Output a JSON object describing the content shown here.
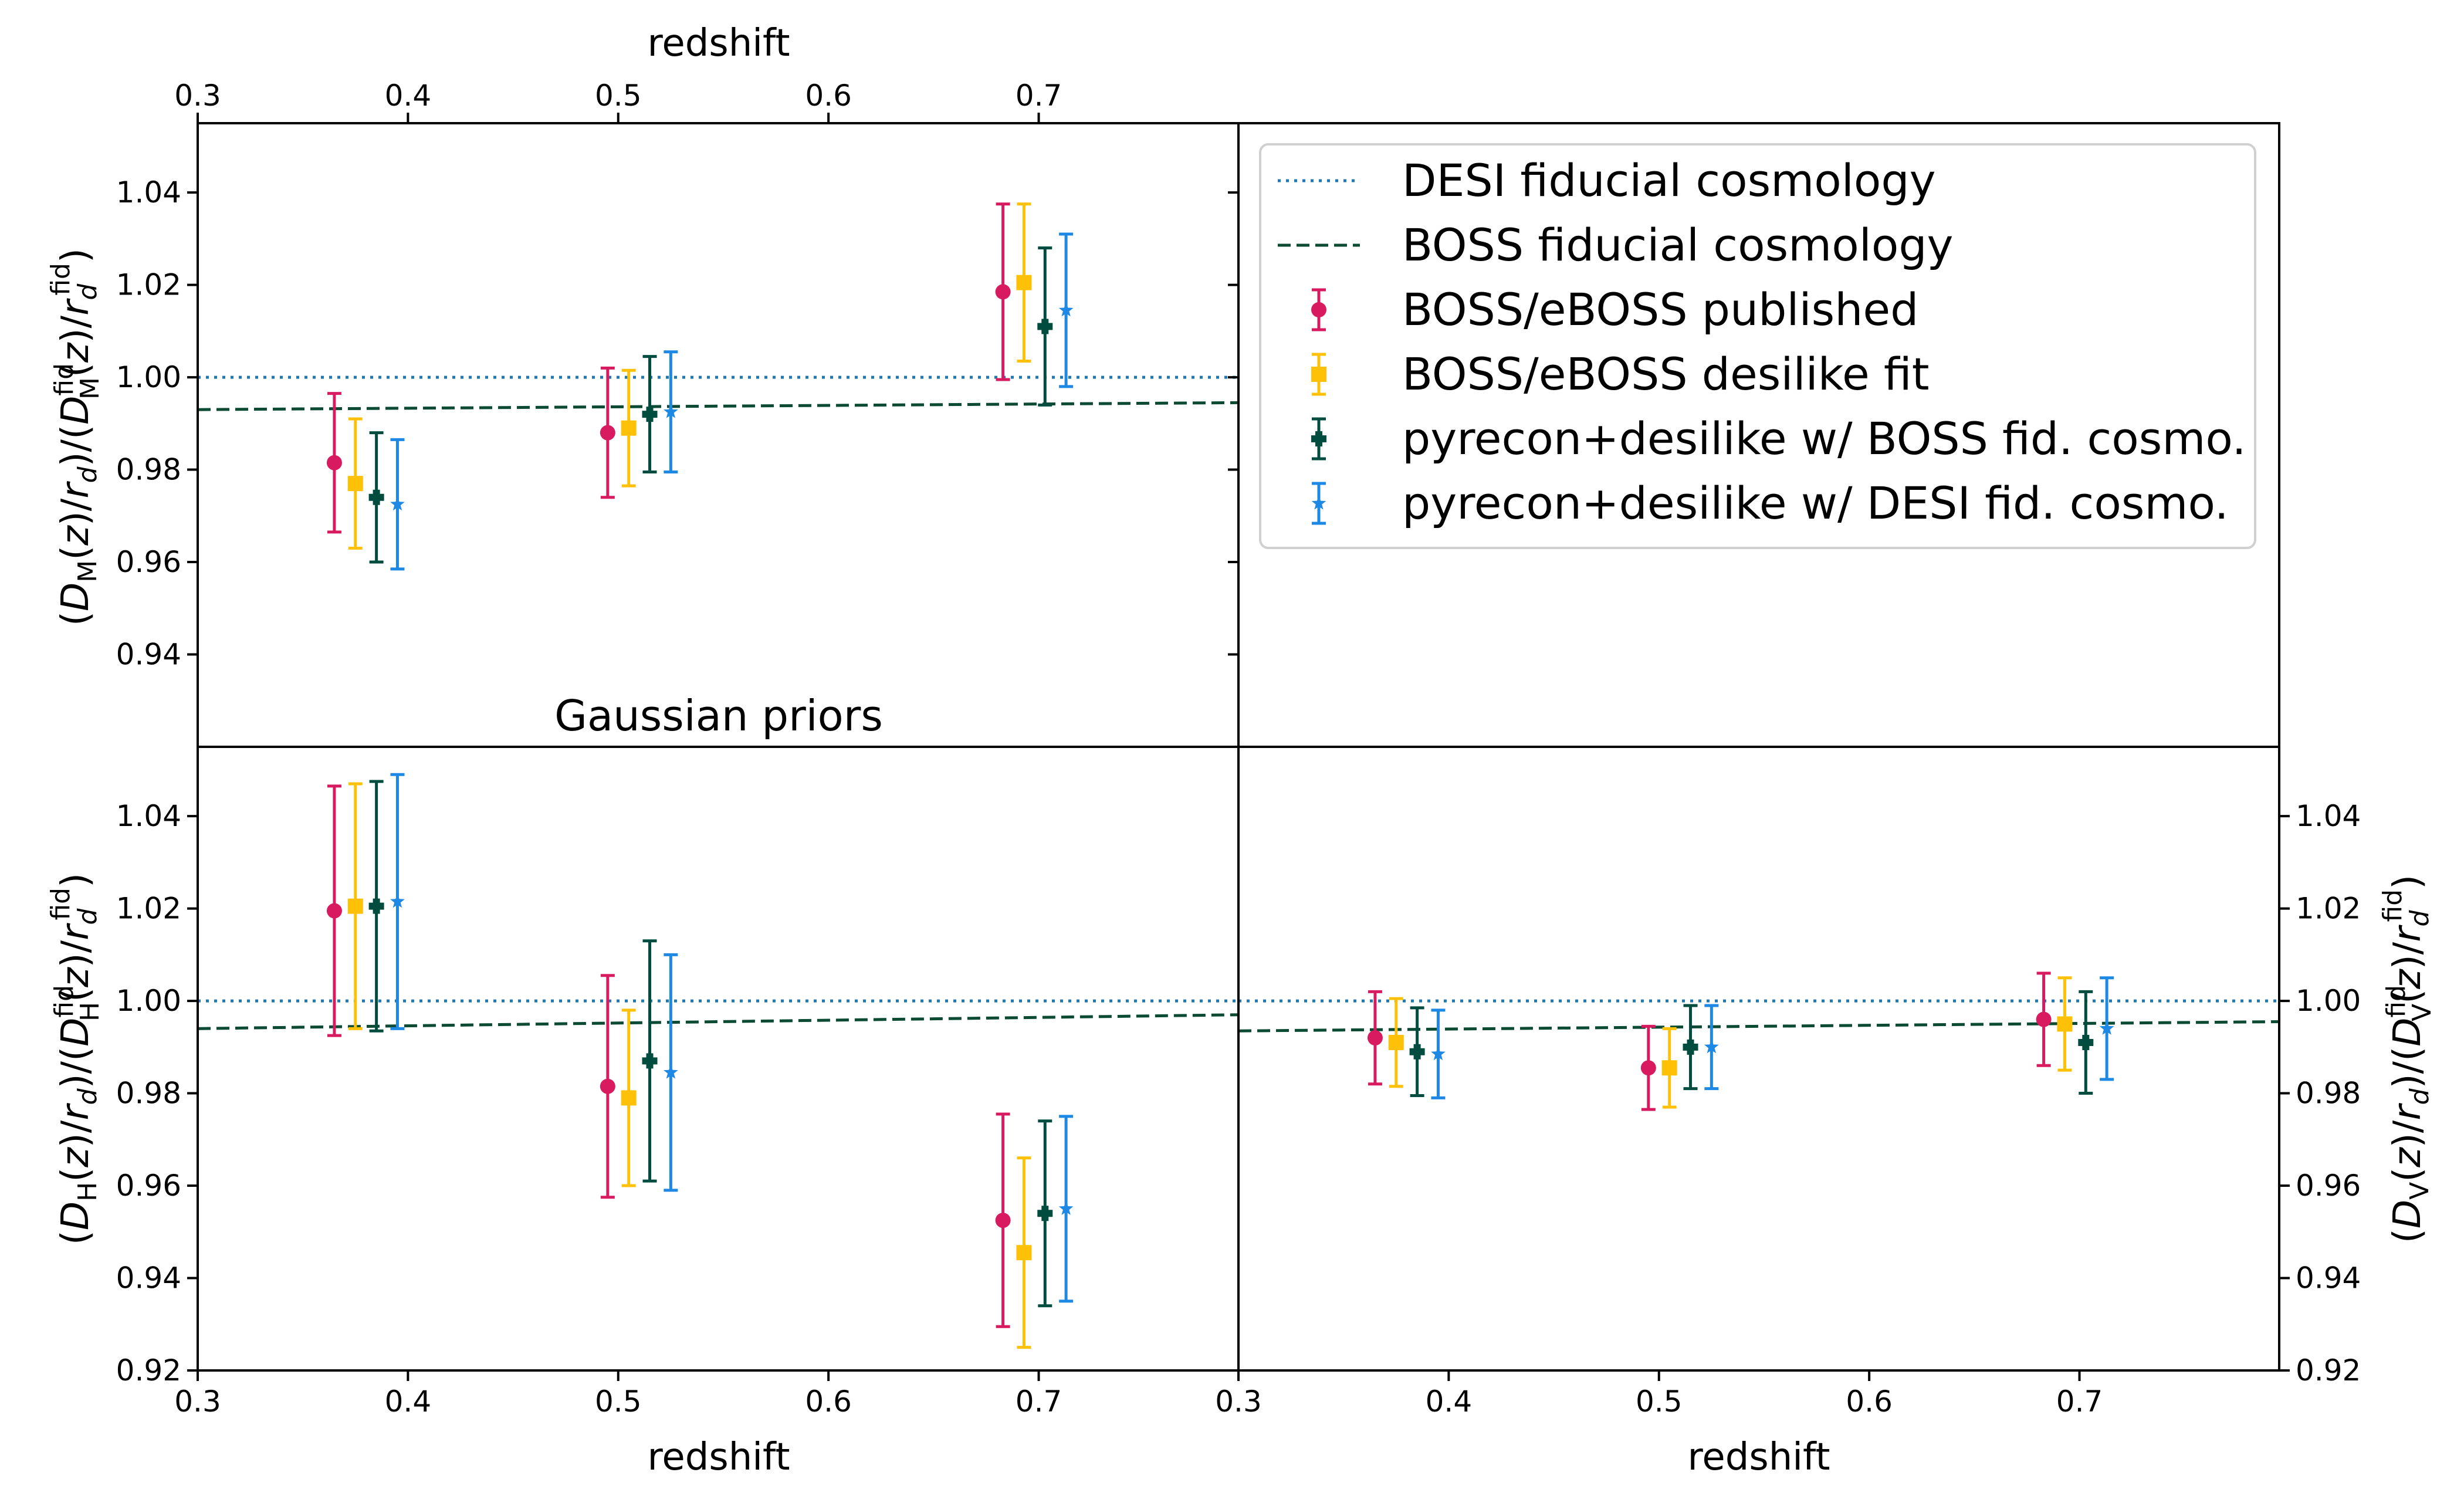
{
  "figure": {
    "top_xlabel": "redshift",
    "bottom_left_xlabel": "redshift",
    "bottom_right_xlabel": "redshift",
    "annotation": "Gaussian priors",
    "ylabel_top_left": "(D_M(z)/r_d)/(D_M^fid(z)/r_d^fid)",
    "ylabel_bottom_left": "(D_H(z)/r_d)/(D_H^fid(z)/r_d^fid)",
    "ylabel_bottom_right": "(D_V(z)/r_d)/(D_V^fid(z)/r_d^fid)",
    "x_ticks": [
      "0.3",
      "0.4",
      "0.5",
      "0.6",
      "0.7"
    ],
    "y_ticks": [
      "0.92",
      "0.94",
      "0.96",
      "0.98",
      "1.00",
      "1.02",
      "1.04"
    ],
    "y_ticks_top_left": [
      "0.94",
      "0.96",
      "0.98",
      "1.00",
      "1.02",
      "1.04"
    ]
  },
  "legend": {
    "placement": "upper-right panel",
    "items": [
      {
        "label": "DESI fiducial cosmology",
        "kind": "line",
        "style": "dotted",
        "color": "#1f77b4"
      },
      {
        "label": "BOSS fiducial cosmology",
        "kind": "line",
        "style": "dashed",
        "color": "#0b4a33"
      },
      {
        "label": "BOSS/eBOSS published",
        "kind": "marker",
        "marker": "circle",
        "color": "#d81b60"
      },
      {
        "label": "BOSS/eBOSS desilike fit",
        "kind": "marker",
        "marker": "square",
        "color": "#ffc107"
      },
      {
        "label": "pyrecon+desilike w/ BOSS fid. cosmo.",
        "kind": "marker",
        "marker": "plus",
        "color": "#004d40"
      },
      {
        "label": "pyrecon+desilike w/ DESI fid. cosmo.",
        "kind": "marker",
        "marker": "star",
        "color": "#1e88e5"
      }
    ]
  },
  "chart_data": [
    {
      "type": "scatter",
      "panel": "DM",
      "xlim": [
        0.3,
        0.795
      ],
      "ylim": [
        0.92,
        1.055
      ],
      "ylabel": "(D_M(z)/r_d)/(D_M^fid(z)/r_d^fid)",
      "reference_lines": [
        {
          "name": "DESI fiducial cosmology",
          "x": [
            0.3,
            0.795
          ],
          "y": [
            1.0,
            1.0
          ]
        },
        {
          "name": "BOSS fiducial cosmology",
          "x": [
            0.3,
            0.795
          ],
          "y": [
            0.993,
            0.9945
          ]
        }
      ],
      "series": [
        {
          "name": "BOSS/eBOSS published",
          "x": [
            0.365,
            0.495,
            0.683
          ],
          "y": [
            0.9815,
            0.988,
            1.0185
          ],
          "yerr": [
            0.015,
            0.014,
            0.019
          ]
        },
        {
          "name": "BOSS/eBOSS desilike fit",
          "x": [
            0.375,
            0.505,
            0.693
          ],
          "y": [
            0.977,
            0.989,
            1.0205
          ],
          "yerr": [
            0.014,
            0.0125,
            0.017
          ]
        },
        {
          "name": "pyrecon+desilike w/ BOSS fid. cosmo.",
          "x": [
            0.385,
            0.515,
            0.703
          ],
          "y": [
            0.974,
            0.992,
            1.011
          ],
          "yerr": [
            0.014,
            0.0125,
            0.017
          ]
        },
        {
          "name": "pyrecon+desilike w/ DESI fid. cosmo.",
          "x": [
            0.395,
            0.525,
            0.713
          ],
          "y": [
            0.9725,
            0.9925,
            1.0145
          ],
          "yerr": [
            0.014,
            0.013,
            0.0165
          ]
        }
      ]
    },
    {
      "type": "scatter",
      "panel": "DH",
      "xlim": [
        0.3,
        0.795
      ],
      "ylim": [
        0.92,
        1.055
      ],
      "xlabel": "redshift",
      "ylabel": "(D_H(z)/r_d)/(D_H^fid(z)/r_d^fid)",
      "reference_lines": [
        {
          "name": "DESI fiducial cosmology",
          "x": [
            0.3,
            0.795
          ],
          "y": [
            1.0,
            1.0
          ]
        },
        {
          "name": "BOSS fiducial cosmology",
          "x": [
            0.3,
            0.795
          ],
          "y": [
            0.994,
            0.997
          ]
        }
      ],
      "series": [
        {
          "name": "BOSS/eBOSS published",
          "x": [
            0.365,
            0.495,
            0.683
          ],
          "y": [
            1.0195,
            0.9815,
            0.9525
          ],
          "yerr": [
            0.027,
            0.024,
            0.023
          ]
        },
        {
          "name": "BOSS/eBOSS desilike fit",
          "x": [
            0.375,
            0.505,
            0.693
          ],
          "y": [
            1.0205,
            0.979,
            0.9455
          ],
          "yerr": [
            0.0265,
            0.019,
            0.0205
          ]
        },
        {
          "name": "pyrecon+desilike w/ BOSS fid. cosmo.",
          "x": [
            0.385,
            0.515,
            0.703
          ],
          "y": [
            1.0205,
            0.987,
            0.954
          ],
          "yerr": [
            0.027,
            0.026,
            0.02
          ]
        },
        {
          "name": "pyrecon+desilike w/ DESI fid. cosmo.",
          "x": [
            0.395,
            0.525,
            0.713
          ],
          "y": [
            1.0215,
            0.9845,
            0.955
          ],
          "yerr": [
            0.0275,
            0.0255,
            0.02
          ]
        }
      ]
    },
    {
      "type": "scatter",
      "panel": "DV",
      "xlim": [
        0.3,
        0.795
      ],
      "ylim": [
        0.92,
        1.055
      ],
      "xlabel": "redshift",
      "ylabel": "(D_V(z)/r_d)/(D_V^fid(z)/r_d^fid)",
      "reference_lines": [
        {
          "name": "DESI fiducial cosmology",
          "x": [
            0.3,
            0.795
          ],
          "y": [
            1.0,
            1.0
          ]
        },
        {
          "name": "BOSS fiducial cosmology",
          "x": [
            0.3,
            0.795
          ],
          "y": [
            0.9935,
            0.9955
          ]
        }
      ],
      "series": [
        {
          "name": "BOSS/eBOSS published",
          "x": [
            0.365,
            0.495,
            0.683
          ],
          "y": [
            0.992,
            0.9855,
            0.996
          ],
          "yerr": [
            0.01,
            0.009,
            0.01
          ]
        },
        {
          "name": "BOSS/eBOSS desilike fit",
          "x": [
            0.375,
            0.505,
            0.693
          ],
          "y": [
            0.991,
            0.9855,
            0.995
          ],
          "yerr": [
            0.0095,
            0.0085,
            0.01
          ]
        },
        {
          "name": "pyrecon+desilike w/ BOSS fid. cosmo.",
          "x": [
            0.385,
            0.515,
            0.703
          ],
          "y": [
            0.989,
            0.99,
            0.991
          ],
          "yerr": [
            0.0095,
            0.009,
            0.011
          ]
        },
        {
          "name": "pyrecon+desilike w/ DESI fid. cosmo.",
          "x": [
            0.395,
            0.525,
            0.713
          ],
          "y": [
            0.9885,
            0.99,
            0.994
          ],
          "yerr": [
            0.0095,
            0.009,
            0.011
          ]
        }
      ]
    }
  ]
}
